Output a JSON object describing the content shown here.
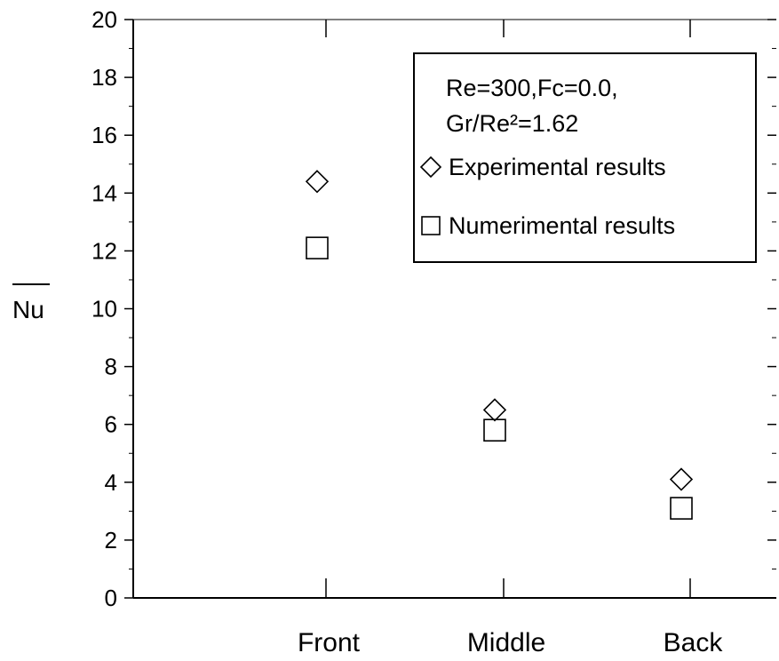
{
  "chart_data": {
    "type": "scatter",
    "categories": [
      "Front",
      "Middle",
      "Back"
    ],
    "ylabel": "Nu",
    "ylim": [
      0,
      20
    ],
    "yticks": [
      0,
      2,
      4,
      6,
      8,
      10,
      12,
      14,
      16,
      18,
      20
    ],
    "series": [
      {
        "name": "Experimental results",
        "marker": "diamond",
        "values": [
          14.4,
          6.5,
          4.1
        ]
      },
      {
        "name": "Numerimental results",
        "marker": "square",
        "values": [
          12.1,
          5.8,
          3.1
        ]
      }
    ],
    "legend": {
      "placement": "top-right",
      "line1": "Re=300,Fc=0.0,",
      "line2": "Gr/Re²=1.62"
    },
    "grid": false
  }
}
